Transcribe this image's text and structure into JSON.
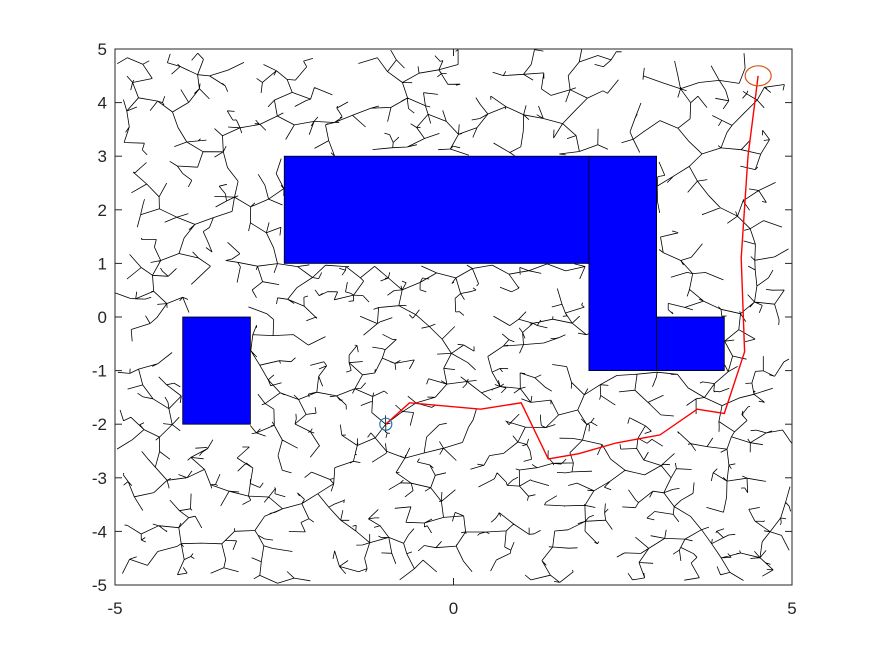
{
  "chart_data": {
    "type": "scatter",
    "title": "",
    "xlabel": "",
    "ylabel": "",
    "xlim": [
      -5,
      5
    ],
    "ylim": [
      -5,
      5
    ],
    "x_ticks": [
      -5,
      0,
      5
    ],
    "y_ticks": [
      -5,
      -4,
      -3,
      -2,
      -1,
      0,
      1,
      2,
      3,
      4,
      5
    ],
    "x_tick_labels": [
      "-5",
      "0",
      "5"
    ],
    "y_tick_labels": [
      "-5",
      "-4",
      "-3",
      "-2",
      "-1",
      "0",
      "1",
      "2",
      "3",
      "4",
      "5"
    ],
    "grid": false,
    "colors": {
      "tree": "#000000",
      "path": "#ff0000",
      "obstacle_fill": "#0000ff",
      "obstacle_edge": "#000000",
      "start_marker": "#1f77b4",
      "goal_marker": "#d95319",
      "axis": "#262626"
    },
    "obstacles": [
      {
        "x": [
          -4,
          -3
        ],
        "y": [
          -2,
          0
        ]
      },
      {
        "x": [
          -2.5,
          2
        ],
        "y": [
          1,
          3
        ]
      },
      {
        "x": [
          2,
          3
        ],
        "y": [
          -1,
          3
        ]
      },
      {
        "x": [
          3,
          4
        ],
        "y": [
          -1,
          0
        ]
      }
    ],
    "start": {
      "x": -1,
      "y": -2
    },
    "goal": {
      "x": 4.5,
      "y": 4.5
    },
    "path": {
      "x": [
        -1,
        -0.65,
        0.4,
        1.0,
        1.4,
        1.85,
        2.4,
        3.05,
        3.6,
        4.0,
        4.3,
        4.25,
        4.35,
        4.45,
        4.5
      ],
      "y": [
        -2,
        -1.6,
        -1.72,
        -1.6,
        -2.65,
        -2.55,
        -2.35,
        -2.2,
        -1.72,
        -1.8,
        -0.65,
        1.1,
        3.0,
        4.0,
        4.5
      ]
    }
  }
}
